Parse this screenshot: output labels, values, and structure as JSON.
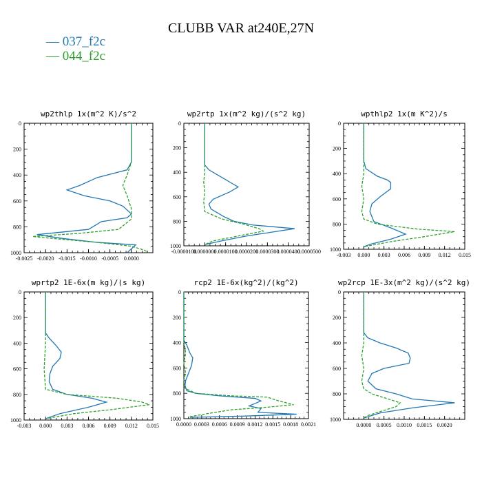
{
  "title": "CLUBB VAR at240E,27N",
  "legend": [
    {
      "label": "— 037_f2c",
      "color": "#1f77b4"
    },
    {
      "label": "— 044_f2c",
      "color": "#2ca02c"
    }
  ],
  "colors": {
    "series_037": "#1f77b4",
    "series_044": "#2ca02c"
  },
  "chart_data": [
    {
      "type": "line",
      "title": "wp2thlp   1x(m^2 K)/s^2",
      "xlim": [
        -0.0025,
        0.0005
      ],
      "ylim": [
        1000,
        0
      ],
      "xticks": [
        "-0.0025",
        "-0.0020",
        "-0.0015",
        "-0.0010",
        "-0.0005",
        "0.0000"
      ],
      "xtick_values": [
        -0.0025,
        -0.002,
        -0.0015,
        -0.001,
        -0.0005,
        0
      ],
      "yticks": [
        "0",
        "200",
        "400",
        "600",
        "800",
        "1000"
      ],
      "series": [
        {
          "name": "037_f2c",
          "values": [
            [
              0,
              0
            ],
            [
              0,
              300
            ],
            [
              -0.0001,
              360
            ],
            [
              -0.0008,
              420
            ],
            [
              -0.0012,
              480
            ],
            [
              -0.0015,
              515
            ],
            [
              -0.0011,
              560
            ],
            [
              -0.0005,
              600
            ],
            [
              -0.0002,
              640
            ],
            [
              0,
              700
            ],
            [
              -0.0001,
              730
            ],
            [
              -0.0007,
              760
            ],
            [
              -0.0009,
              800
            ],
            [
              -0.001,
              820
            ],
            [
              -0.0016,
              840
            ],
            [
              -0.0022,
              860
            ],
            [
              -0.0016,
              890
            ],
            [
              -0.0008,
              920
            ],
            [
              0.0001,
              940
            ],
            [
              0,
              970
            ],
            [
              -0.0001,
              1000
            ]
          ]
        },
        {
          "name": "044_f2c",
          "values": [
            [
              0,
              0
            ],
            [
              0,
              300
            ],
            [
              -0.0001,
              400
            ],
            [
              -0.0002,
              480
            ],
            [
              -0.0001,
              560
            ],
            [
              0,
              660
            ],
            [
              0,
              740
            ],
            [
              -0.0003,
              820
            ],
            [
              -0.0012,
              850
            ],
            [
              -0.0023,
              875
            ],
            [
              -0.0015,
              900
            ],
            [
              -0.0008,
              920
            ],
            [
              0,
              950
            ],
            [
              0.0003,
              980
            ],
            [
              0.0004,
              1000
            ]
          ]
        }
      ]
    },
    {
      "type": "line",
      "title": "wp2rtp   1x(m^2 kg)/(s^2 kg)",
      "xlim": [
        -1e-05,
        5e-05
      ],
      "ylim": [
        1000,
        0
      ],
      "xticks": [
        "-0.0000100",
        "0.0000000",
        "0.0000100",
        "0.0000200",
        "0.0000300",
        "0.0000400",
        "0.0000500"
      ],
      "xtick_values": [
        -1e-05,
        0,
        1e-05,
        2e-05,
        3e-05,
        4e-05,
        5e-05
      ],
      "yticks": [
        "0",
        "200",
        "400",
        "600",
        "800",
        "1000"
      ],
      "series": [
        {
          "name": "037_f2c",
          "values": [
            [
              0,
              0
            ],
            [
              0,
              340
            ],
            [
              2e-06,
              380
            ],
            [
              8e-06,
              440
            ],
            [
              1.4e-05,
              500
            ],
            [
              1.6e-05,
              520
            ],
            [
              1.2e-05,
              560
            ],
            [
              4e-06,
              620
            ],
            [
              2e-06,
              660
            ],
            [
              3e-06,
              700
            ],
            [
              9e-06,
              760
            ],
            [
              1.4e-05,
              800
            ],
            [
              2.3e-05,
              830
            ],
            [
              4.3e-05,
              860
            ],
            [
              2e-05,
              920
            ],
            [
              8e-06,
              960
            ],
            [
              0,
              990
            ]
          ]
        },
        {
          "name": "044_f2c",
          "values": [
            [
              0,
              0
            ],
            [
              0,
              300
            ],
            [
              0,
              400
            ],
            [
              -5e-07,
              480
            ],
            [
              0,
              560
            ],
            [
              -5e-07,
              640
            ],
            [
              0,
              720
            ],
            [
              8e-06,
              780
            ],
            [
              1.8e-05,
              820
            ],
            [
              2.6e-05,
              860
            ],
            [
              2.8e-05,
              880
            ],
            [
              1.6e-05,
              920
            ],
            [
              4e-06,
              960
            ],
            [
              0,
              990
            ]
          ]
        }
      ]
    },
    {
      "type": "line",
      "title": "wpthlp2   1x(m K^2)/s",
      "xlim": [
        -0.003,
        0.015
      ],
      "ylim": [
        1000,
        0
      ],
      "xticks": [
        "-0.003",
        "0.000",
        "0.003",
        "0.006",
        "0.009",
        "0.012",
        "0.015"
      ],
      "xtick_values": [
        -0.003,
        0,
        0.003,
        0.006,
        0.009,
        0.012,
        0.015
      ],
      "yticks": [
        "0",
        "200",
        "400",
        "600",
        "800",
        "1000"
      ],
      "series": [
        {
          "name": "037_f2c",
          "values": [
            [
              0,
              0
            ],
            [
              0,
              300
            ],
            [
              0.0003,
              360
            ],
            [
              0.002,
              420
            ],
            [
              0.0035,
              450
            ],
            [
              0.004,
              470
            ],
            [
              0.004,
              520
            ],
            [
              0.0025,
              580
            ],
            [
              0.0012,
              640
            ],
            [
              0.0009,
              700
            ],
            [
              0.0015,
              780
            ],
            [
              0.004,
              830
            ],
            [
              0.0062,
              880
            ],
            [
              0.004,
              920
            ],
            [
              0.001,
              960
            ],
            [
              0,
              980
            ]
          ]
        },
        {
          "name": "044_f2c",
          "values": [
            [
              0,
              0
            ],
            [
              0,
              300
            ],
            [
              0,
              400
            ],
            [
              -0.0003,
              500
            ],
            [
              0,
              600
            ],
            [
              -0.0003,
              700
            ],
            [
              0,
              760
            ],
            [
              0.002,
              800
            ],
            [
              0.008,
              840
            ],
            [
              0.0135,
              860
            ],
            [
              0.009,
              900
            ],
            [
              0.004,
              940
            ],
            [
              0.001,
              970
            ],
            [
              0,
              980
            ]
          ]
        }
      ]
    },
    {
      "type": "line",
      "title": "wprtp2   1E-6x(m kg)/(s kg)",
      "xlim": [
        -0.003,
        0.015
      ],
      "ylim": [
        1000,
        0
      ],
      "xticks": [
        "-0.003",
        "0.000",
        "0.003",
        "0.006",
        "0.009",
        "0.012",
        "0.015"
      ],
      "xtick_values": [
        -0.003,
        0,
        0.003,
        0.006,
        0.009,
        0.012,
        0.015
      ],
      "yticks": [
        "0",
        "200",
        "400",
        "600",
        "800",
        "1000"
      ],
      "series": [
        {
          "name": "037_f2c",
          "values": [
            [
              0,
              0
            ],
            [
              0,
              320
            ],
            [
              0.0005,
              360
            ],
            [
              0.0015,
              420
            ],
            [
              0.0022,
              470
            ],
            [
              0.002,
              520
            ],
            [
              0.001,
              580
            ],
            [
              0.0006,
              640
            ],
            [
              0.0005,
              700
            ],
            [
              0.001,
              760
            ],
            [
              0.003,
              800
            ],
            [
              0.0065,
              830
            ],
            [
              0.0085,
              860
            ],
            [
              0.006,
              900
            ],
            [
              0.002,
              950
            ],
            [
              0,
              990
            ]
          ]
        },
        {
          "name": "044_f2c",
          "values": [
            [
              0,
              0
            ],
            [
              0,
              400
            ],
            [
              -0.0002,
              600
            ],
            [
              0,
              760
            ],
            [
              0.003,
              800
            ],
            [
              0.01,
              830
            ],
            [
              0.0135,
              860
            ],
            [
              0.0145,
              880
            ],
            [
              0.009,
              920
            ],
            [
              0.004,
              950
            ],
            [
              0.001,
              980
            ],
            [
              0,
              990
            ]
          ]
        }
      ]
    },
    {
      "type": "line",
      "title": "rcp2   1E-6x(kg^2)/(kg^2)",
      "xlim": [
        0,
        0.0021
      ],
      "ylim": [
        1000,
        0
      ],
      "xticks": [
        "0.0000",
        "0.0003",
        "0.0006",
        "0.0009",
        "0.0012",
        "0.0015",
        "0.0018",
        "0.0021"
      ],
      "xtick_values": [
        0,
        0.0003,
        0.0006,
        0.0009,
        0.0012,
        0.0015,
        0.0018,
        0.0021
      ],
      "yticks": [
        "0",
        "200",
        "400",
        "600",
        "800",
        "1000"
      ],
      "series": [
        {
          "name": "037_f2c",
          "values": [
            [
              0,
              0
            ],
            [
              0,
              380
            ],
            [
              5e-05,
              420
            ],
            [
              0.0001,
              480
            ],
            [
              0.00015,
              520
            ],
            [
              0.00013,
              580
            ],
            [
              8e-05,
              640
            ],
            [
              3e-05,
              700
            ],
            [
              2e-05,
              740
            ],
            [
              5e-05,
              780
            ],
            [
              0.0002,
              800
            ],
            [
              0.0006,
              820
            ],
            [
              0.0012,
              840
            ],
            [
              0.0013,
              860
            ],
            [
              0.0012,
              880
            ],
            [
              0.0011,
              900
            ],
            [
              0.0013,
              920
            ],
            [
              0.00125,
              950
            ],
            [
              0.0019,
              965
            ],
            [
              0.001,
              980
            ],
            [
              0.0001,
              990
            ]
          ]
        },
        {
          "name": "044_f2c",
          "values": [
            [
              0,
              0
            ],
            [
              0,
              380
            ],
            [
              3e-05,
              480
            ],
            [
              0,
              560
            ],
            [
              3e-05,
              640
            ],
            [
              0,
              700
            ],
            [
              2e-05,
              760
            ],
            [
              0.0002,
              800
            ],
            [
              0.0008,
              820
            ],
            [
              0.0014,
              830
            ],
            [
              0.0016,
              860
            ],
            [
              0.00185,
              890
            ],
            [
              0.0014,
              910
            ],
            [
              0.0008,
              930
            ],
            [
              0.0004,
              960
            ],
            [
              0.0001,
              985
            ]
          ]
        }
      ]
    },
    {
      "type": "line",
      "title": "wp2rcp   1E-3x(m^2 kg)/(s^2 kg)",
      "xlim": [
        -0.0005,
        0.0025
      ],
      "ylim": [
        1000,
        0
      ],
      "xticks": [
        "0.0000",
        "0.0005",
        "0.0010",
        "0.0015",
        "0.0020"
      ],
      "xtick_values": [
        0,
        0.0005,
        0.001,
        0.0015,
        0.002
      ],
      "yticks": [
        "0",
        "200",
        "400",
        "600",
        "800",
        "1000"
      ],
      "series": [
        {
          "name": "037_f2c",
          "values": [
            [
              0,
              0
            ],
            [
              0,
              320
            ],
            [
              0.0001,
              360
            ],
            [
              0.0004,
              400
            ],
            [
              0.0008,
              440
            ],
            [
              0.0011,
              480
            ],
            [
              0.00115,
              520
            ],
            [
              0.00112,
              560
            ],
            [
              0.0005,
              600
            ],
            [
              0.0002,
              640
            ],
            [
              0.0001,
              700
            ],
            [
              0.0003,
              760
            ],
            [
              0.0008,
              800
            ],
            [
              0.0012,
              840
            ],
            [
              0.00225,
              870
            ],
            [
              0.0012,
              910
            ],
            [
              0.0004,
              950
            ],
            [
              0,
              990
            ]
          ]
        },
        {
          "name": "044_f2c",
          "values": [
            [
              0,
              0
            ],
            [
              0,
              400
            ],
            [
              -5e-05,
              500
            ],
            [
              0,
              600
            ],
            [
              -5e-05,
              700
            ],
            [
              0,
              760
            ],
            [
              0.0002,
              800
            ],
            [
              0.0006,
              840
            ],
            [
              0.0009,
              870
            ],
            [
              0.0008,
              900
            ],
            [
              0.0004,
              940
            ],
            [
              0.0001,
              970
            ],
            [
              0,
              990
            ]
          ]
        }
      ]
    }
  ]
}
